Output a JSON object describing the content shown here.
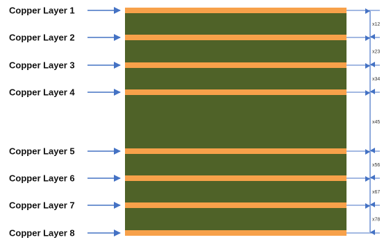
{
  "colors": {
    "copper": "#F7A14A",
    "dielectric": "#4F6228",
    "arrow": "#4472C4"
  },
  "layers": [
    {
      "label": "Copper Layer 1"
    },
    {
      "label": "Copper Layer 2"
    },
    {
      "label": "Copper Layer 3"
    },
    {
      "label": "Copper Layer 4"
    },
    {
      "label": "Copper Layer 5"
    },
    {
      "label": "Copper Layer 6"
    },
    {
      "label": "Copper Layer 7"
    },
    {
      "label": "Copper Layer 8"
    }
  ],
  "spacings": [
    {
      "label": "x12"
    },
    {
      "label": "x23"
    },
    {
      "label": "x34"
    },
    {
      "label": "x45"
    },
    {
      "label": "x56"
    },
    {
      "label": "x67"
    },
    {
      "label": "x78"
    }
  ]
}
